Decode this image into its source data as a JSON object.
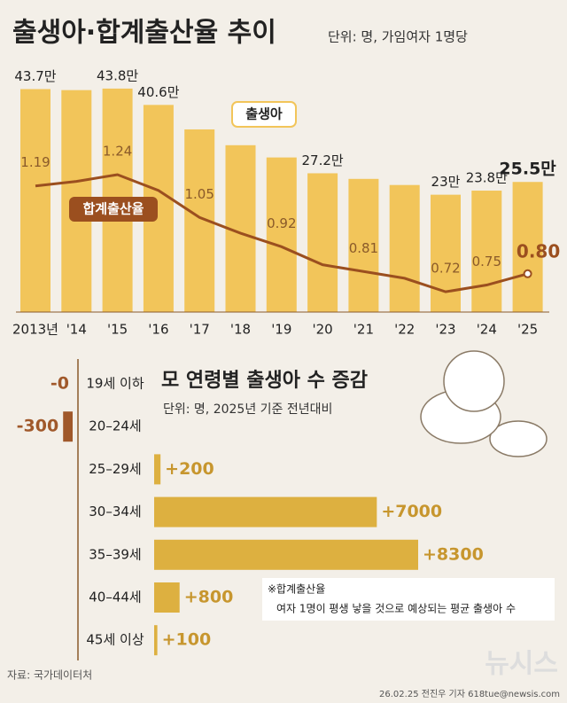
{
  "title": "출생아·합계출산율 추이",
  "unit": "단위: 명, 가임여자 1명당",
  "chart_data": [
    {
      "type": "bar-line",
      "categories": [
        "2013년",
        "'14",
        "'15",
        "'16",
        "'17",
        "'18",
        "'19",
        "'20",
        "'21",
        "'22",
        "'23",
        "'24",
        "'25"
      ],
      "ylim": [
        0,
        49
      ],
      "y2lim": [
        0.63,
        1.74
      ],
      "series": [
        {
          "name": "출생아",
          "color": "#f2c55a",
          "values": [
            43.7,
            43.5,
            43.8,
            40.6,
            35.8,
            32.7,
            30.3,
            27.2,
            26.1,
            24.9,
            23,
            23.8,
            25.5
          ],
          "value_labels": [
            "43.7만",
            null,
            "43.8만",
            "40.6만",
            null,
            null,
            null,
            "27.2만",
            null,
            null,
            "23만",
            "23.8만",
            "25.5만"
          ]
        },
        {
          "name": "합계출산율",
          "color": "#9b4f1f",
          "axis": "y2",
          "values": [
            1.19,
            1.21,
            1.24,
            1.17,
            1.05,
            0.98,
            0.92,
            0.84,
            0.81,
            0.78,
            0.72,
            0.75,
            0.8
          ],
          "value_labels": [
            "1.19",
            null,
            "1.24",
            null,
            "1.05",
            null,
            "0.92",
            null,
            "0.81",
            null,
            "0.72",
            "0.75",
            "0.80"
          ]
        }
      ]
    },
    {
      "type": "hbar",
      "title": "모 연령별 출생아 수 증감",
      "subtitle": "단위: 명, 2025년 기준 전년대비",
      "categories": [
        "19세 이하",
        "20–24세",
        "25–29세",
        "30–34세",
        "35–39세",
        "40–44세",
        "45세 이상"
      ],
      "values": [
        0,
        -300,
        200,
        7000,
        8300,
        800,
        100
      ],
      "value_labels": [
        "-0",
        "-300",
        "+200",
        "+7000",
        "+8300",
        "+800",
        "+100"
      ],
      "xlim": [
        0,
        8300
      ],
      "color": "#ddb040",
      "negative_color": "#a0582a"
    }
  ],
  "note": {
    "title": "※합계출산율",
    "text": "여자 1명이 평생 낳을 것으로 예상되는 평균 출생아 수"
  },
  "source": "자료: 국가데이터처",
  "credit": "26.02.25 전진우 기자 618tue@newsis.com",
  "logo": "뉴시스"
}
